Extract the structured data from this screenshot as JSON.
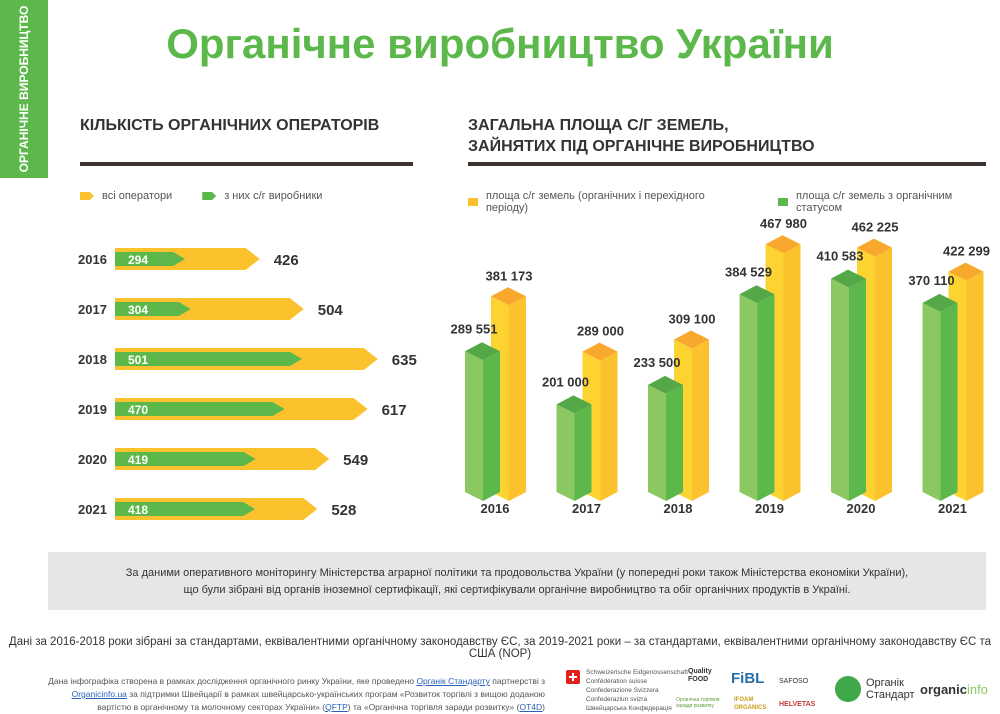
{
  "sidebar_label": "ОРГАНІЧНЕ ВИРОБНИЦТВО",
  "title": "Органічне виробництво України",
  "colors": {
    "green": "#5cb84a",
    "green_light": "#8cc862",
    "yellow": "#fbc22d",
    "yellow_top": "#f8a82c",
    "dark": "#3a3330"
  },
  "left": {
    "heading": "КІЛЬКІСТЬ ОРГАНІЧНИХ ОПЕРАТОРІВ",
    "legend": [
      "всі оператори",
      "з них с/г виробники"
    ]
  },
  "right": {
    "heading_line1": "ЗАГАЛЬНА ПЛОЩА С/Г ЗЕМЕЛЬ,",
    "heading_line2": "ЗАЙНЯТИХ ПІД ОРГАНІЧНЕ ВИРОБНИЦТВО",
    "legend": [
      "площа с/г земель (органічних і перехідного періоду)",
      "площа с/г земель з органічним статусом"
    ]
  },
  "chart_data": [
    {
      "type": "bar",
      "orientation": "horizontal",
      "title": "КІЛЬКІСТЬ ОРГАНІЧНИХ ОПЕРАТОРІВ",
      "categories": [
        "2016",
        "2017",
        "2018",
        "2019",
        "2020",
        "2021"
      ],
      "series": [
        {
          "name": "всі оператори",
          "color": "#fbc22d",
          "values": [
            426,
            504,
            635,
            617,
            549,
            528
          ]
        },
        {
          "name": "з них с/г виробники",
          "color": "#5cb84a",
          "values": [
            294,
            304,
            501,
            470,
            419,
            418
          ]
        }
      ],
      "labels_all": [
        "426",
        "504",
        "635",
        "617",
        "549",
        "528"
      ],
      "labels_prod": [
        "294",
        "304",
        "501",
        "470",
        "419",
        "418"
      ]
    },
    {
      "type": "bar",
      "orientation": "vertical",
      "style": "3d",
      "title": "ЗАГАЛЬНА ПЛОЩА С/Г ЗЕМЕЛЬ, ЗАЙНЯТИХ ПІД ОРГАНІЧНЕ ВИРОБНИЦТВО",
      "categories": [
        "2016",
        "2017",
        "2018",
        "2019",
        "2020",
        "2021"
      ],
      "series": [
        {
          "name": "площа с/г земель з органічним статусом",
          "color": "#5cb84a",
          "values": [
            289551,
            201000,
            233500,
            384529,
            410583,
            370110
          ]
        },
        {
          "name": "площа с/г земель (органічних і перехідного періоду)",
          "color": "#fbc22d",
          "values": [
            381173,
            289000,
            309100,
            467980,
            462225,
            422299
          ]
        }
      ],
      "labels_green": [
        "289 551",
        "201 000",
        "233 500",
        "384 529",
        "410 583",
        "370 110"
      ],
      "labels_yellow": [
        "381 173",
        "289 000",
        "309 100",
        "467 980",
        "462 225",
        "422 299"
      ]
    }
  ],
  "note_line1": "За даними оперативного моніторингу Міністерства аграрної політики та продовольства України (у попередні роки також Міністерства економіки України),",
  "note_line2": "що були зібрані від органів іноземної сертифікації, які сертифікували органічне виробництво та обіг органічних продуктів в Україні.",
  "footnote": "Дані за 2016-2018 роки зібрані за стандартами, еквівалентними органічному законодавству ЄС, за 2019-2021 роки – за стандартами, еквівалентними органічному законодавству ЄС та США (NOP)",
  "credit": {
    "t1": "Дана інфографіка створена в рамках дослідження органічного ринку України, яке проведено ",
    "l1": "Органік Стандарту",
    "t2": " партнерстві з ",
    "l2": "Organicinfo.ua",
    "t3": " за підтримки Швейцарії в рамках швейцарсько-українських програм «Розвиток торгівлі з вищою доданою вартістю в органічному та молочному секторах України» (",
    "l3": "QFTP",
    "t4": ") та «Органічна торгівля заради розвитку» (",
    "l4": "OT4D",
    "t5": ")"
  },
  "logos": {
    "swiss_lines": [
      "Schweizerische Eidgenossenschaft",
      "Confédération suisse",
      "Confederazione Svizzera",
      "Confederaziun svizra"
    ],
    "swiss_ua": "Швейцарська Конфедерація",
    "quality_food": "Quality FOOD",
    "fibl": "FiBL",
    "safoso": "SAFOSO",
    "ot4d": "Органічна торгівля заради розвитку",
    "ifoam": "IFOAM ORGANICS",
    "helvetas": "HELVETAS",
    "os_line1": "Органік",
    "os_line2": "Стандарт",
    "organicinfo_a": "organic",
    "organicinfo_b": "info"
  }
}
